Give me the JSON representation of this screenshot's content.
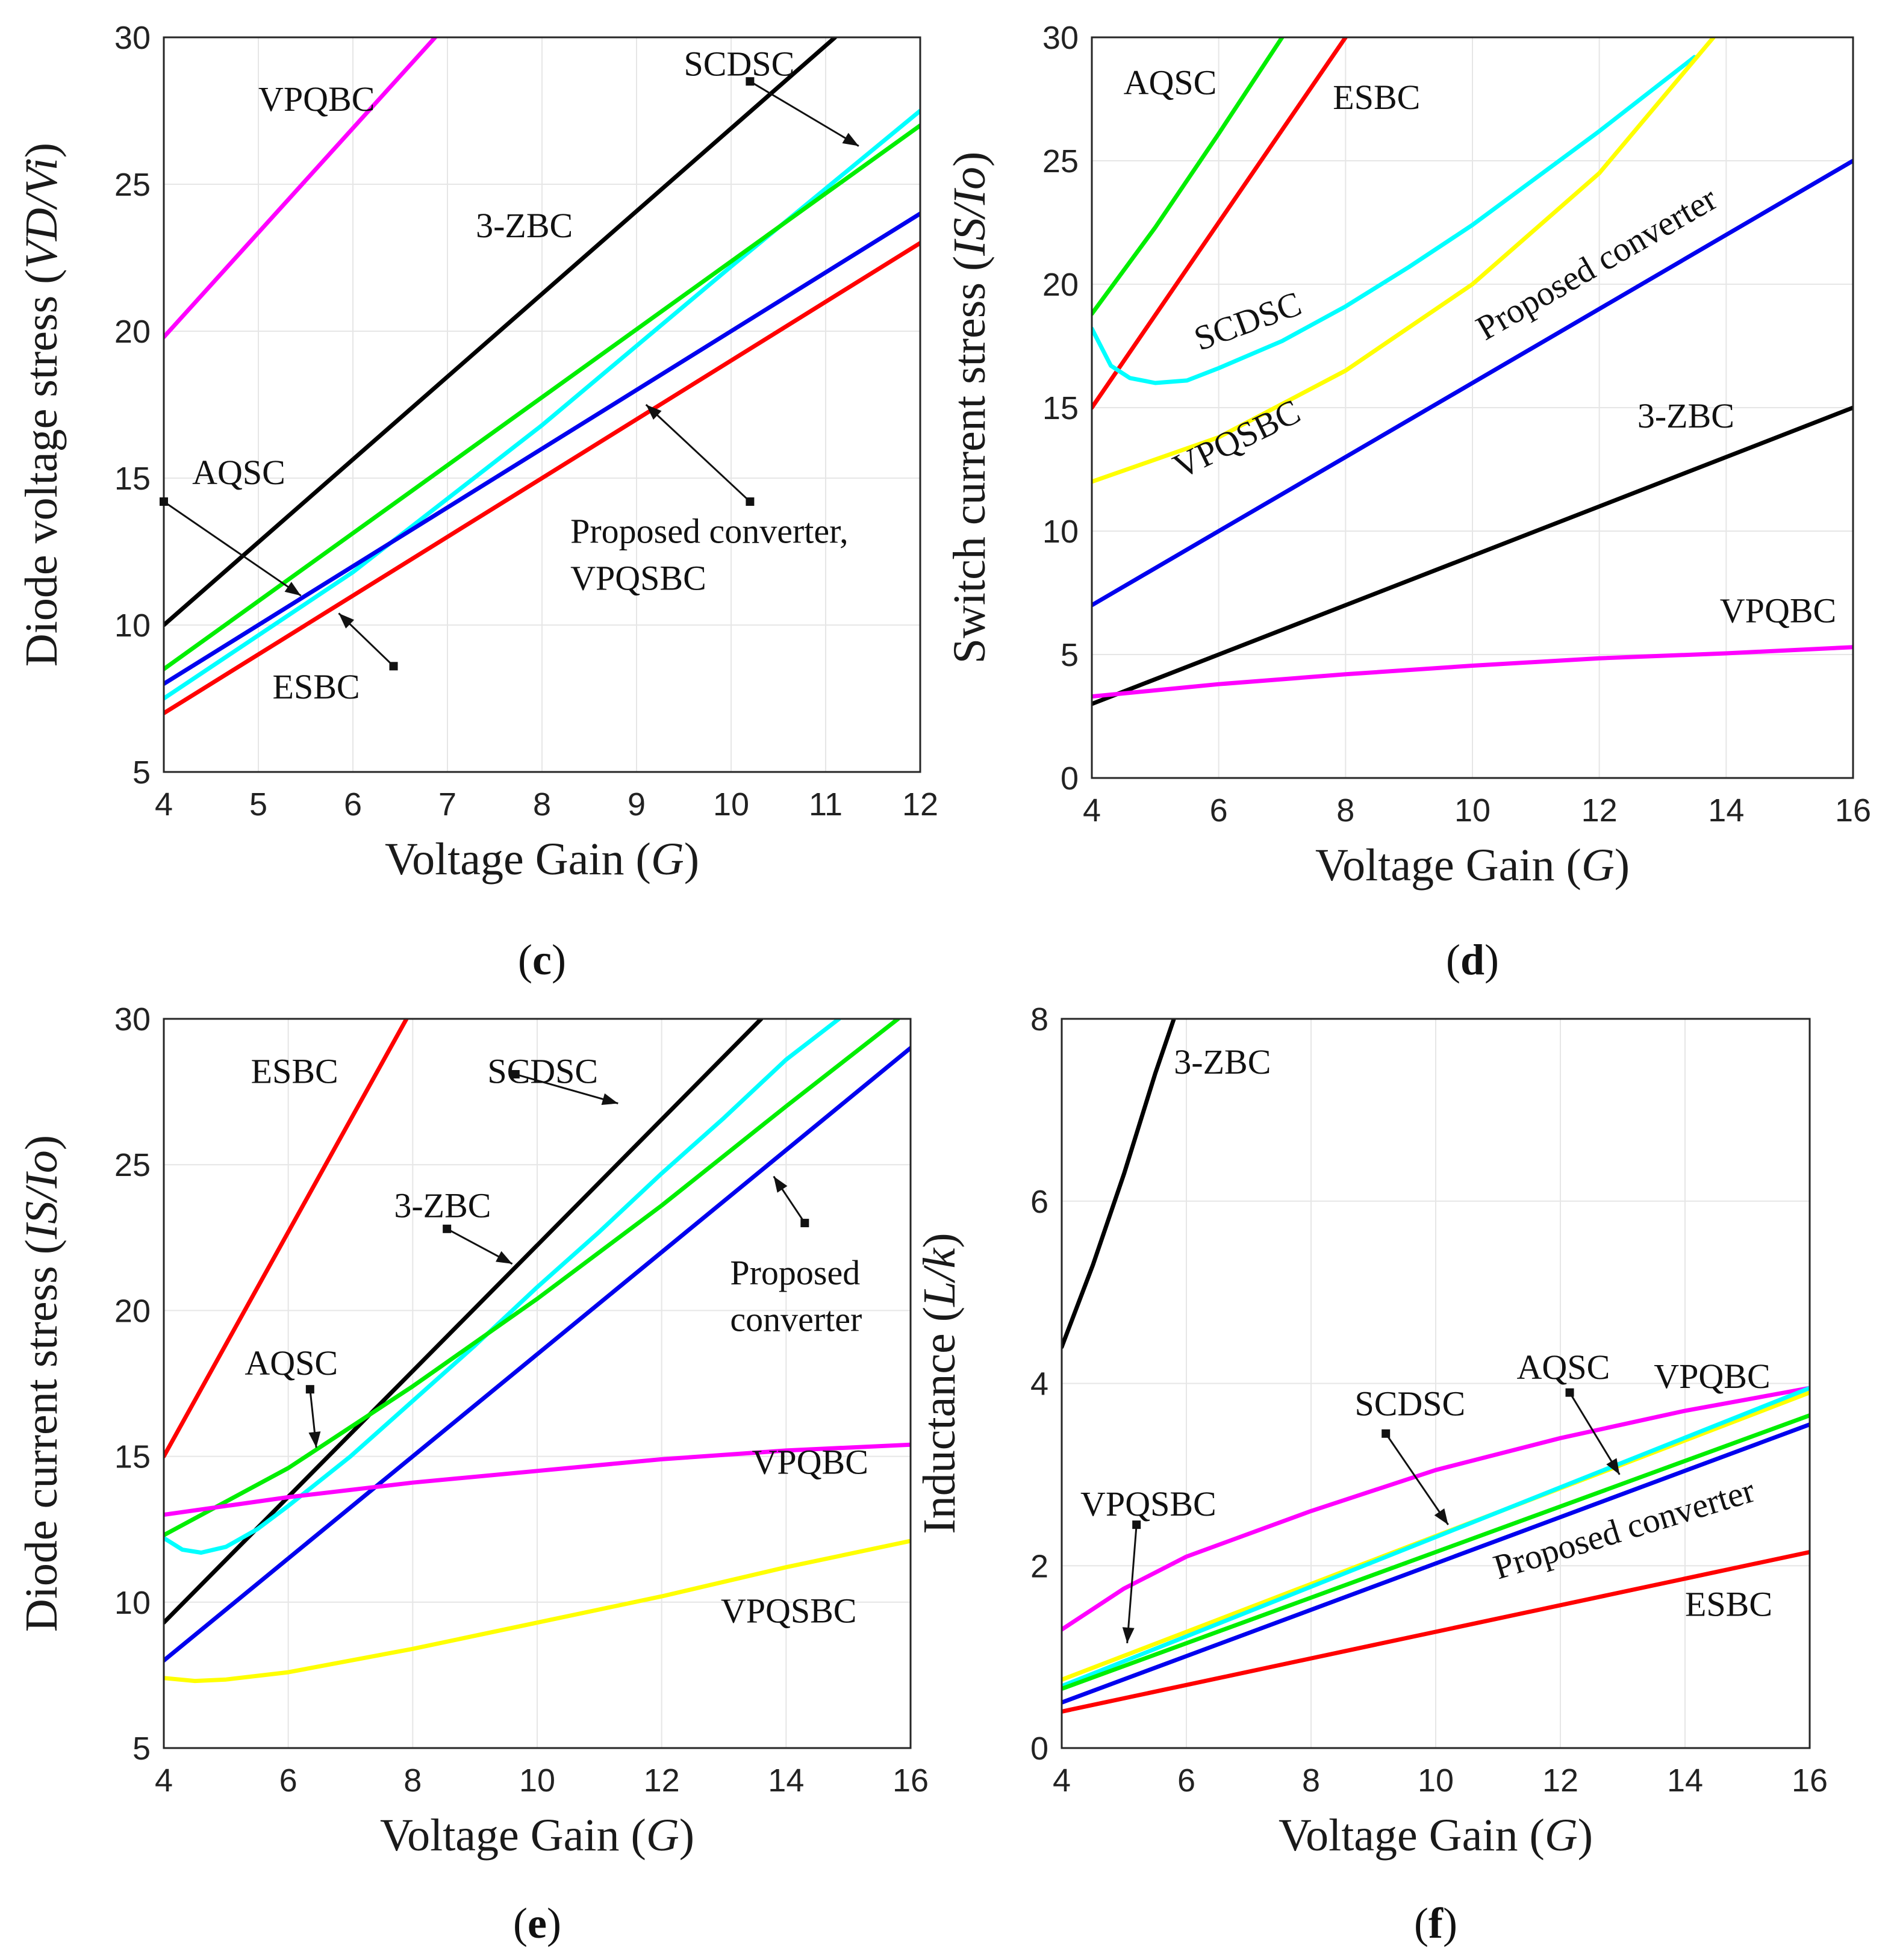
{
  "figure": {
    "panels": [
      "c",
      "d",
      "e",
      "f"
    ]
  },
  "colors": {
    "VPQBC": "#ff00ff",
    "3-ZBC": "#000000",
    "SCDSC": "#00ffff",
    "AQSC": "#00ee00",
    "Proposed": "#0000ee",
    "ESBC": "#ff0000",
    "VPQSBC": "#ffff00"
  },
  "chart_data": [
    {
      "id": "c",
      "type": "line",
      "caption": "c",
      "xlabel": "Voltage Gain",
      "xlabel_var": "G",
      "ylabel": "Diode voltage stress",
      "ylabel_var": "VD/Vi",
      "xlim": [
        4,
        12
      ],
      "ylim": [
        5,
        30
      ],
      "xticks": [
        4,
        5,
        6,
        7,
        8,
        9,
        10,
        11,
        12
      ],
      "yticks": [
        5,
        10,
        15,
        20,
        25,
        30
      ],
      "grid": true,
      "series": [
        {
          "name": "VPQBC",
          "x": [
            4,
            6.87
          ],
          "y": [
            19.8,
            30
          ]
        },
        {
          "name": "3-ZBC",
          "x": [
            4,
            11.1
          ],
          "y": [
            10,
            30
          ]
        },
        {
          "name": "SCDSC",
          "x": [
            4,
            6,
            8,
            10,
            12
          ],
          "y": [
            7.5,
            11.8,
            16.8,
            22.2,
            27.5
          ]
        },
        {
          "name": "AQSC",
          "x": [
            4,
            12
          ],
          "y": [
            8.5,
            27
          ]
        },
        {
          "name": "Proposed converter",
          "x": [
            4,
            12
          ],
          "y": [
            8,
            24
          ]
        },
        {
          "name": "ESBC",
          "x": [
            4,
            12
          ],
          "y": [
            7,
            23
          ]
        }
      ],
      "annotations": [
        {
          "text": "VPQBC",
          "x": 5.0,
          "y": 27.5
        },
        {
          "text": "SCDSC",
          "x": 9.5,
          "y": 28.7
        },
        {
          "text": "3-ZBC",
          "x": 7.3,
          "y": 23.2
        },
        {
          "text": "AQSC",
          "x": 4.3,
          "y": 14.8
        },
        {
          "text": "Proposed converter,",
          "x": 8.3,
          "y": 12.8
        },
        {
          "text": "VPQSBC",
          "x": 8.3,
          "y": 11.2
        },
        {
          "text": "ESBC",
          "x": 5.15,
          "y": 7.5
        }
      ],
      "arrows": [
        {
          "from": [
            10.2,
            28.5
          ],
          "to": [
            11.35,
            26.3
          ]
        },
        {
          "from": [
            4.0,
            14.2
          ],
          "to": [
            5.45,
            11.0
          ]
        },
        {
          "from": [
            10.2,
            14.2
          ],
          "to": [
            9.1,
            17.5
          ]
        },
        {
          "from": [
            6.43,
            8.6
          ],
          "to": [
            5.85,
            10.4
          ]
        }
      ]
    },
    {
      "id": "d",
      "type": "line",
      "caption": "d",
      "xlabel": "Voltage Gain",
      "xlabel_var": "G",
      "ylabel": "Switch current stress",
      "ylabel_var": "IS/Io",
      "xlim": [
        4,
        16
      ],
      "ylim": [
        0,
        30
      ],
      "xticks": [
        4,
        6,
        8,
        10,
        12,
        14,
        16
      ],
      "yticks": [
        0,
        5,
        10,
        15,
        20,
        25,
        30
      ],
      "grid": true,
      "series": [
        {
          "name": "AQSC",
          "x": [
            4,
            5,
            6,
            7
          ],
          "y": [
            18.8,
            22.3,
            26.1,
            30
          ]
        },
        {
          "name": "ESBC",
          "x": [
            4,
            8
          ],
          "y": [
            15,
            30
          ]
        },
        {
          "name": "SCDSC",
          "x": [
            4,
            4.3,
            4.6,
            5,
            5.5,
            6,
            7,
            8,
            9,
            10,
            11,
            12,
            13,
            13.5
          ],
          "y": [
            18.2,
            16.7,
            16.2,
            16,
            16.1,
            16.6,
            17.7,
            19.1,
            20.7,
            22.4,
            24.3,
            26.2,
            28.2,
            29.2
          ]
        },
        {
          "name": "VPQSBC",
          "x": [
            4,
            6,
            8,
            10,
            12,
            13.8
          ],
          "y": [
            12,
            13.8,
            16.5,
            20,
            24.5,
            30
          ]
        },
        {
          "name": "Proposed converter",
          "x": [
            4,
            16
          ],
          "y": [
            7,
            25
          ]
        },
        {
          "name": "3-ZBC",
          "x": [
            4,
            16
          ],
          "y": [
            3,
            15
          ]
        },
        {
          "name": "VPQBC",
          "x": [
            4,
            6,
            8,
            10,
            12,
            14,
            16
          ],
          "y": [
            3.3,
            3.8,
            4.2,
            4.55,
            4.85,
            5.05,
            5.3
          ]
        }
      ],
      "annotations": [
        {
          "text": "AQSC",
          "x": 4.5,
          "y": 27.7
        },
        {
          "text": "ESBC",
          "x": 7.8,
          "y": 27.1
        },
        {
          "text": "SCDSC",
          "x": 5.7,
          "y": 17.3,
          "rotate": -20
        },
        {
          "text": "VPQSBC",
          "x": 5.4,
          "y": 12.1,
          "rotate": -26
        },
        {
          "text": "Proposed converter",
          "x": 10.2,
          "y": 17.7,
          "rotate": -30
        },
        {
          "text": "3-ZBC",
          "x": 12.6,
          "y": 14.2
        },
        {
          "text": "VPQBC",
          "x": 13.9,
          "y": 6.3
        }
      ]
    },
    {
      "id": "e",
      "type": "line",
      "caption": "e",
      "xlabel": "Voltage Gain",
      "xlabel_var": "G",
      "ylabel": "Diode current stress",
      "ylabel_var": "IS/Io",
      "xlim": [
        4,
        16
      ],
      "ylim": [
        5,
        30
      ],
      "xticks": [
        4,
        6,
        8,
        10,
        12,
        14,
        16
      ],
      "yticks": [
        5,
        10,
        15,
        20,
        25,
        30
      ],
      "grid": true,
      "series": [
        {
          "name": "ESBC",
          "x": [
            4,
            7.9
          ],
          "y": [
            15,
            30
          ]
        },
        {
          "name": "3-ZBC",
          "x": [
            4,
            13.6
          ],
          "y": [
            9.3,
            30
          ]
        },
        {
          "name": "SCDSC",
          "x": [
            4,
            4.3,
            4.6,
            5,
            5.5,
            6,
            7,
            8,
            9,
            10,
            11,
            12,
            13,
            14,
            14.85
          ],
          "y": [
            12.2,
            11.8,
            11.7,
            11.9,
            12.5,
            13.3,
            15,
            16.9,
            18.8,
            20.8,
            22.7,
            24.7,
            26.6,
            28.6,
            30
          ]
        },
        {
          "name": "AQSC",
          "x": [
            4,
            6,
            8,
            10,
            12,
            14,
            15.8
          ],
          "y": [
            12.3,
            14.6,
            17.4,
            20.4,
            23.6,
            27,
            30
          ]
        },
        {
          "name": "Proposed converter",
          "x": [
            4,
            16
          ],
          "y": [
            8,
            29
          ]
        },
        {
          "name": "VPQBC",
          "x": [
            4,
            6,
            8,
            10,
            12,
            14,
            16
          ],
          "y": [
            13,
            13.6,
            14.1,
            14.5,
            14.9,
            15.2,
            15.4
          ]
        },
        {
          "name": "VPQSBC",
          "x": [
            4,
            4.5,
            5,
            6,
            7,
            8,
            10,
            12,
            14,
            16
          ],
          "y": [
            7.4,
            7.3,
            7.35,
            7.6,
            8,
            8.4,
            9.3,
            10.2,
            11.2,
            12.1
          ]
        }
      ],
      "annotations": [
        {
          "text": "ESBC",
          "x": 5.4,
          "y": 27.8
        },
        {
          "text": "SCDSC",
          "x": 9.2,
          "y": 27.8
        },
        {
          "text": "3-ZBC",
          "x": 7.7,
          "y": 23.2
        },
        {
          "text": "Proposed",
          "x": 13.1,
          "y": 20.9
        },
        {
          "text": "converter",
          "x": 13.1,
          "y": 19.3
        },
        {
          "text": "AQSC",
          "x": 5.3,
          "y": 17.8
        },
        {
          "text": "VPQBC",
          "x": 13.45,
          "y": 14.4
        },
        {
          "text": "VPQSBC",
          "x": 12.95,
          "y": 9.3
        }
      ],
      "arrows": [
        {
          "from": [
            9.65,
            28.1
          ],
          "to": [
            11.3,
            27.1
          ]
        },
        {
          "from": [
            8.55,
            22.8
          ],
          "to": [
            9.6,
            21.6
          ]
        },
        {
          "from": [
            14.3,
            23.0
          ],
          "to": [
            13.8,
            24.6
          ]
        },
        {
          "from": [
            6.35,
            17.3
          ],
          "to": [
            6.45,
            15.3
          ]
        }
      ]
    },
    {
      "id": "f",
      "type": "line",
      "caption": "f",
      "xlabel": "Voltage Gain",
      "xlabel_var": "G",
      "ylabel": "Inductance",
      "ylabel_var": "L/k",
      "xlim": [
        4,
        16
      ],
      "ylim": [
        0,
        8
      ],
      "xticks": [
        4,
        6,
        8,
        10,
        12,
        14,
        16
      ],
      "yticks": [
        0,
        2,
        4,
        6,
        8
      ],
      "grid": true,
      "series": [
        {
          "name": "3-ZBC",
          "x": [
            4,
            4.5,
            5,
            5.5,
            5.8
          ],
          "y": [
            4.4,
            5.3,
            6.3,
            7.4,
            8
          ]
        },
        {
          "name": "VPQBC",
          "x": [
            4,
            5,
            6,
            8,
            10,
            12,
            14,
            16
          ],
          "y": [
            1.3,
            1.75,
            2.1,
            2.6,
            3.05,
            3.4,
            3.7,
            3.95
          ]
        },
        {
          "name": "VPQSBC",
          "x": [
            4,
            16
          ],
          "y": [
            0.75,
            3.9
          ]
        },
        {
          "name": "SCDSC",
          "x": [
            4,
            16
          ],
          "y": [
            0.68,
            3.95
          ]
        },
        {
          "name": "AQSC",
          "x": [
            4,
            16
          ],
          "y": [
            0.65,
            3.65
          ]
        },
        {
          "name": "Proposed converter",
          "x": [
            4,
            16
          ],
          "y": [
            0.5,
            3.55
          ]
        },
        {
          "name": "ESBC",
          "x": [
            4,
            16
          ],
          "y": [
            0.4,
            2.15
          ]
        }
      ],
      "annotations": [
        {
          "text": "3-ZBC",
          "x": 5.8,
          "y": 7.4
        },
        {
          "text": "VPQBC",
          "x": 13.5,
          "y": 3.95
        },
        {
          "text": "AQSC",
          "x": 11.3,
          "y": 4.05
        },
        {
          "text": "SCDSC",
          "x": 8.7,
          "y": 3.65
        },
        {
          "text": "VPQSBC",
          "x": 4.3,
          "y": 2.55
        },
        {
          "text": "Proposed converter",
          "x": 11.0,
          "y": 1.85,
          "rotate": -17
        },
        {
          "text": "ESBC",
          "x": 14.0,
          "y": 1.45
        }
      ],
      "arrows": [
        {
          "from": [
            12.15,
            3.9
          ],
          "to": [
            12.95,
            3.0
          ]
        },
        {
          "from": [
            9.2,
            3.45
          ],
          "to": [
            10.2,
            2.45
          ]
        },
        {
          "from": [
            5.2,
            2.45
          ],
          "to": [
            5.05,
            1.15
          ]
        }
      ]
    }
  ]
}
